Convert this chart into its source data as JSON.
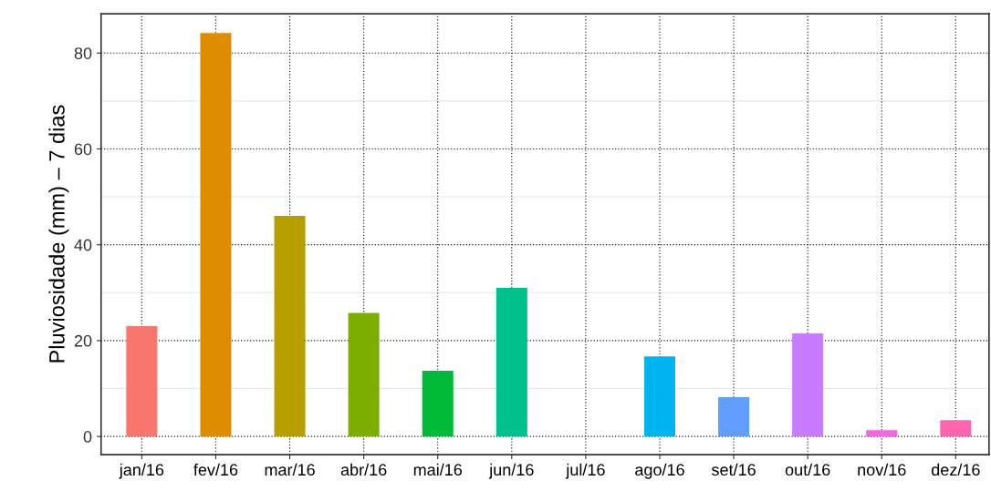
{
  "chart_data": {
    "type": "bar",
    "ylabel": "Pluviosidade (mm) – 7 dias",
    "categories": [
      "jan/16",
      "fev/16",
      "mar/16",
      "abr/16",
      "mai/16",
      "jun/16",
      "jul/16",
      "ago/16",
      "set/16",
      "out/16",
      "nov/16",
      "dez/16"
    ],
    "values": [
      23.0,
      84.2,
      46.0,
      25.8,
      13.7,
      31.0,
      0,
      16.7,
      8.2,
      21.5,
      1.3,
      3.4
    ],
    "colors": [
      "#f8766d",
      "#de8c00",
      "#b79f00",
      "#7cae00",
      "#00ba38",
      "#00c08b",
      "#00bfc4",
      "#00b4f0",
      "#619cff",
      "#c77cff",
      "#f564e3",
      "#ff64b0"
    ],
    "ylim": [
      -3.8,
      88.2
    ],
    "yticks": [
      0,
      20,
      40,
      60,
      80
    ],
    "grid": true
  }
}
